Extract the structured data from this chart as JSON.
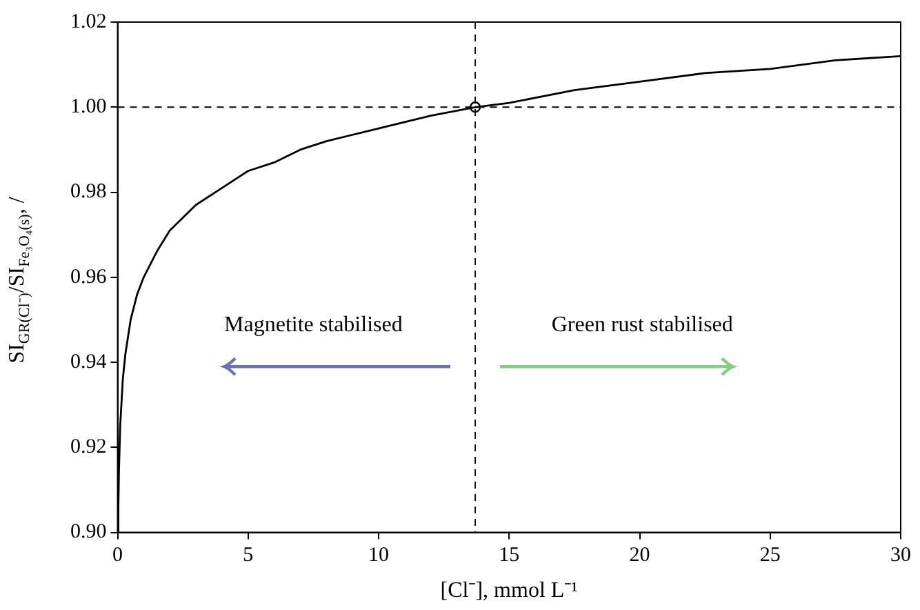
{
  "chart_data": {
    "type": "line",
    "xlabel": "[Cl⁻], mmol L⁻¹",
    "ylabel": "SI$_{GR(Cl⁻)}$/SI$_{Fe₃O₄(s)}$, /",
    "series": [
      {
        "type": "line",
        "color": "#000000",
        "x": [
          0.02,
          0.03,
          0.05,
          0.1,
          0.2,
          0.3,
          0.5,
          0.75,
          1,
          1.5,
          2,
          3,
          4,
          5,
          6,
          7,
          8,
          10,
          12,
          13.7,
          15,
          17.5,
          20,
          22.5,
          25,
          27.5,
          30
        ],
        "values": [
          0.9,
          0.906,
          0.914,
          0.925,
          0.936,
          0.942,
          0.95,
          0.956,
          0.96,
          0.966,
          0.971,
          0.977,
          0.981,
          0.985,
          0.987,
          0.99,
          0.992,
          0.995,
          0.998,
          1.0,
          1.001,
          1.004,
          1.006,
          1.008,
          1.009,
          1.011,
          1.012
        ]
      },
      {
        "type": "scatter",
        "color": "#000000",
        "marker": "circle",
        "x": [
          13.7
        ],
        "values": [
          1.0
        ]
      }
    ],
    "xlim": [
      0,
      30
    ],
    "xticks": [
      0,
      5,
      10,
      15,
      20,
      25,
      30
    ],
    "ylim": [
      0.9,
      1.02
    ],
    "yticks": [
      {
        "value": 0.9,
        "label": "0.90"
      },
      {
        "value": 0.92,
        "label": "0.92"
      },
      {
        "value": 0.94,
        "label": "0.94"
      },
      {
        "value": 0.96,
        "label": "0.96"
      },
      {
        "value": 0.98,
        "label": "0.98"
      },
      {
        "value": 1.0,
        "label": "1.00"
      },
      {
        "value": 1.02,
        "label": "1.02"
      }
    ],
    "ref_lines": [
      {
        "axis": "x",
        "value": 13.7,
        "line_style": "dashed"
      },
      {
        "axis": "y",
        "value": 1.0,
        "line_style": "dashed"
      }
    ],
    "annotations": [
      "Magnetite stabilised",
      "Green rust stabilised"
    ],
    "grid": false,
    "legend": false
  }
}
